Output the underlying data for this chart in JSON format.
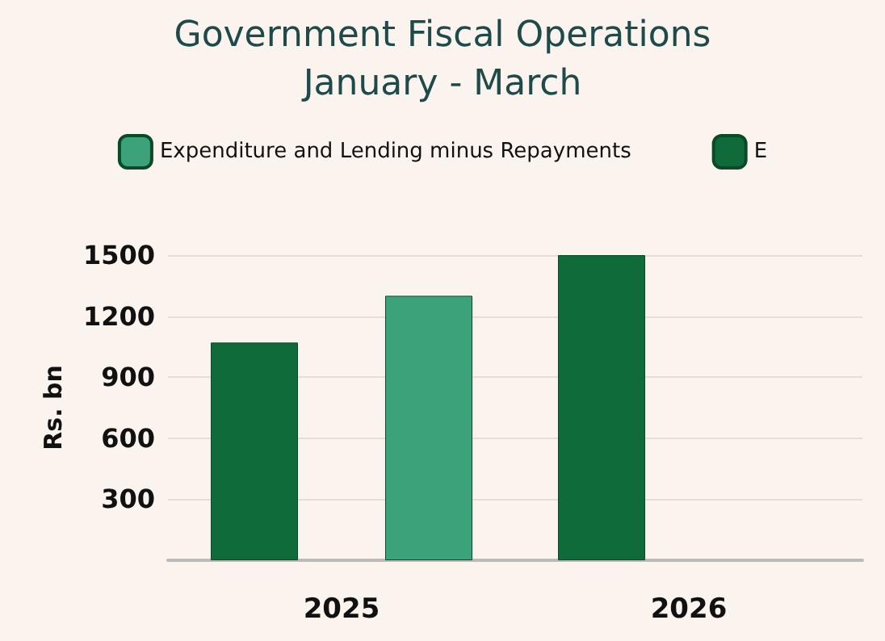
{
  "chart_data": {
    "type": "bar",
    "title": "Government Fiscal Operations",
    "subtitle": "January - March",
    "ylabel": "Rs. bn",
    "categories": [
      "2025",
      "2026"
    ],
    "series": [
      {
        "name": "E",
        "color": "#106b3b",
        "values": [
          1070,
          1500
        ]
      },
      {
        "name": "Expenditure and Lending minus Repayments",
        "color": "#3ba279",
        "values": [
          1300,
          null
        ]
      }
    ],
    "ylim": [
      0,
      1500
    ],
    "yticks": [
      {
        "value": 0,
        "label": null
      },
      300,
      600,
      900,
      1200,
      1500
    ],
    "grid": "y",
    "legend": "top"
  }
}
